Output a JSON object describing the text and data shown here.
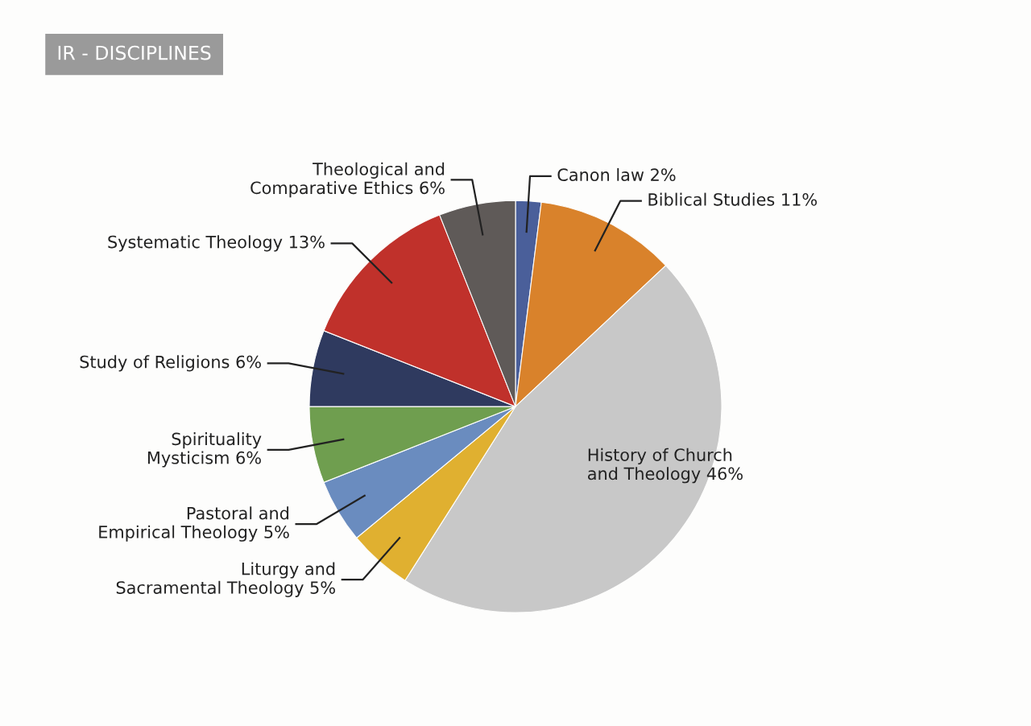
{
  "chart_data": {
    "type": "pie",
    "title": "IR - DISCIPLINES",
    "categories": [
      "Canon law",
      "Biblical Studies",
      "History of Church\nand Theology",
      "Liturgy and\nSacramental Theology",
      "Pastoral and\nEmpirical Theology",
      "Spirituality\nMysticism",
      "Study of Religions",
      "Systematic Theology",
      "Theological and\nComparative Ethics"
    ],
    "values": [
      2,
      11,
      46,
      5,
      5,
      6,
      6,
      13,
      6
    ],
    "value_labels": [
      "2%",
      "11%",
      "46%",
      "5%",
      "5%",
      "6%",
      "6%",
      "13%",
      "6%"
    ],
    "colors": [
      "#4a5f9a",
      "#d9822b",
      "#c8c8c8",
      "#e0b030",
      "#6a8cbf",
      "#6f9e4f",
      "#2f3a5f",
      "#c0312b",
      "#5f5a58"
    ],
    "legend": false
  }
}
